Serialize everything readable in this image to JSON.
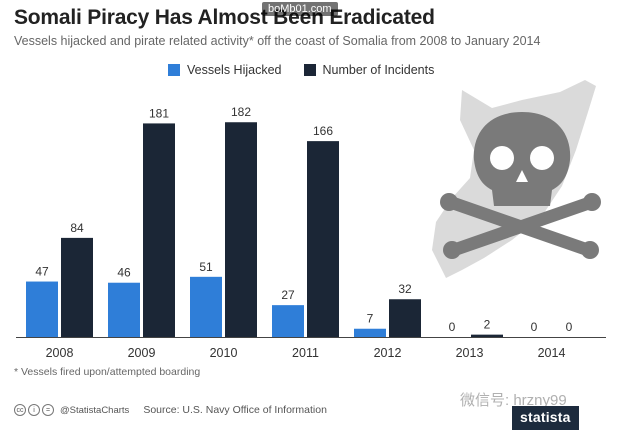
{
  "title": "Somali Piracy Has Almost Been Eradicated",
  "watermark_top": "boMb01.com",
  "subtitle": "Vessels hijacked and pirate related activity* off the coast of Somalia from 2008 to January 2014",
  "footnote": "* Vessels fired upon/attempted boarding",
  "footer": {
    "handle": "@StatistaCharts",
    "source": "Source: U.S. Navy Office of Information"
  },
  "wechat": "微信号: hrzny99",
  "brand": "statista",
  "colors": {
    "hijacked": "#2f7ed8",
    "incidents": "#1b2636",
    "axis": "#444444",
    "map": "#dadada",
    "skull": "#7a7a7a"
  },
  "chart_data": {
    "type": "bar",
    "categories": [
      "2008",
      "2009",
      "2010",
      "2011",
      "2012",
      "2013",
      "2014"
    ],
    "series": [
      {
        "name": "Vessels Hijacked",
        "values": [
          47,
          46,
          51,
          27,
          7,
          0,
          0
        ]
      },
      {
        "name": "Number of Incidents",
        "values": [
          84,
          181,
          182,
          166,
          32,
          2,
          0
        ]
      }
    ],
    "ylim": [
      0,
      200
    ],
    "legend_position": "top",
    "grid": false
  }
}
